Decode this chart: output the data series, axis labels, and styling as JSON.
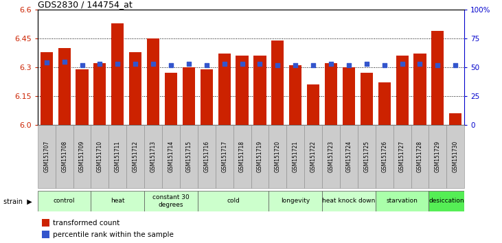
{
  "title": "GDS2830 / 144754_at",
  "samples": [
    "GSM151707",
    "GSM151708",
    "GSM151709",
    "GSM151710",
    "GSM151711",
    "GSM151712",
    "GSM151713",
    "GSM151714",
    "GSM151715",
    "GSM151716",
    "GSM151717",
    "GSM151718",
    "GSM151719",
    "GSM151720",
    "GSM151721",
    "GSM151722",
    "GSM151723",
    "GSM151724",
    "GSM151725",
    "GSM151726",
    "GSM151727",
    "GSM151728",
    "GSM151729",
    "GSM151730"
  ],
  "bar_values": [
    6.38,
    6.4,
    6.29,
    6.32,
    6.53,
    6.38,
    6.45,
    6.27,
    6.3,
    6.29,
    6.37,
    6.36,
    6.36,
    6.44,
    6.31,
    6.21,
    6.32,
    6.3,
    6.27,
    6.22,
    6.36,
    6.37,
    6.49,
    6.06
  ],
  "percentile_values": [
    54,
    55,
    52,
    53,
    53,
    53,
    53,
    52,
    53,
    52,
    53,
    53,
    53,
    52,
    52,
    52,
    53,
    52,
    53,
    52,
    53,
    53,
    52,
    52
  ],
  "bar_color": "#cc2200",
  "percentile_color": "#3355cc",
  "ymin": 6.0,
  "ymax": 6.6,
  "yticks": [
    6.0,
    6.15,
    6.3,
    6.45,
    6.6
  ],
  "right_yticks": [
    0,
    25,
    50,
    75,
    100
  ],
  "right_ylabels": [
    "0",
    "25",
    "50",
    "75",
    "100%"
  ],
  "groups": [
    {
      "label": "control",
      "start": 0,
      "end": 3,
      "color": "#ccffcc"
    },
    {
      "label": "heat",
      "start": 3,
      "end": 6,
      "color": "#ccffcc"
    },
    {
      "label": "constant 30\ndegrees",
      "start": 6,
      "end": 9,
      "color": "#ccffcc"
    },
    {
      "label": "cold",
      "start": 9,
      "end": 13,
      "color": "#ccffcc"
    },
    {
      "label": "longevity",
      "start": 13,
      "end": 16,
      "color": "#ccffcc"
    },
    {
      "label": "heat knock down",
      "start": 16,
      "end": 19,
      "color": "#ccffcc"
    },
    {
      "label": "starvation",
      "start": 19,
      "end": 22,
      "color": "#aaffaa"
    },
    {
      "label": "desiccation",
      "start": 22,
      "end": 24,
      "color": "#55ee55"
    }
  ],
  "strain_label": "strain",
  "legend_bar_label": "transformed count",
  "legend_dot_label": "percentile rank within the sample",
  "xlabel_bg": "#cccccc",
  "sep_color": "#333333",
  "fig_width": 7.31,
  "fig_height": 3.54
}
